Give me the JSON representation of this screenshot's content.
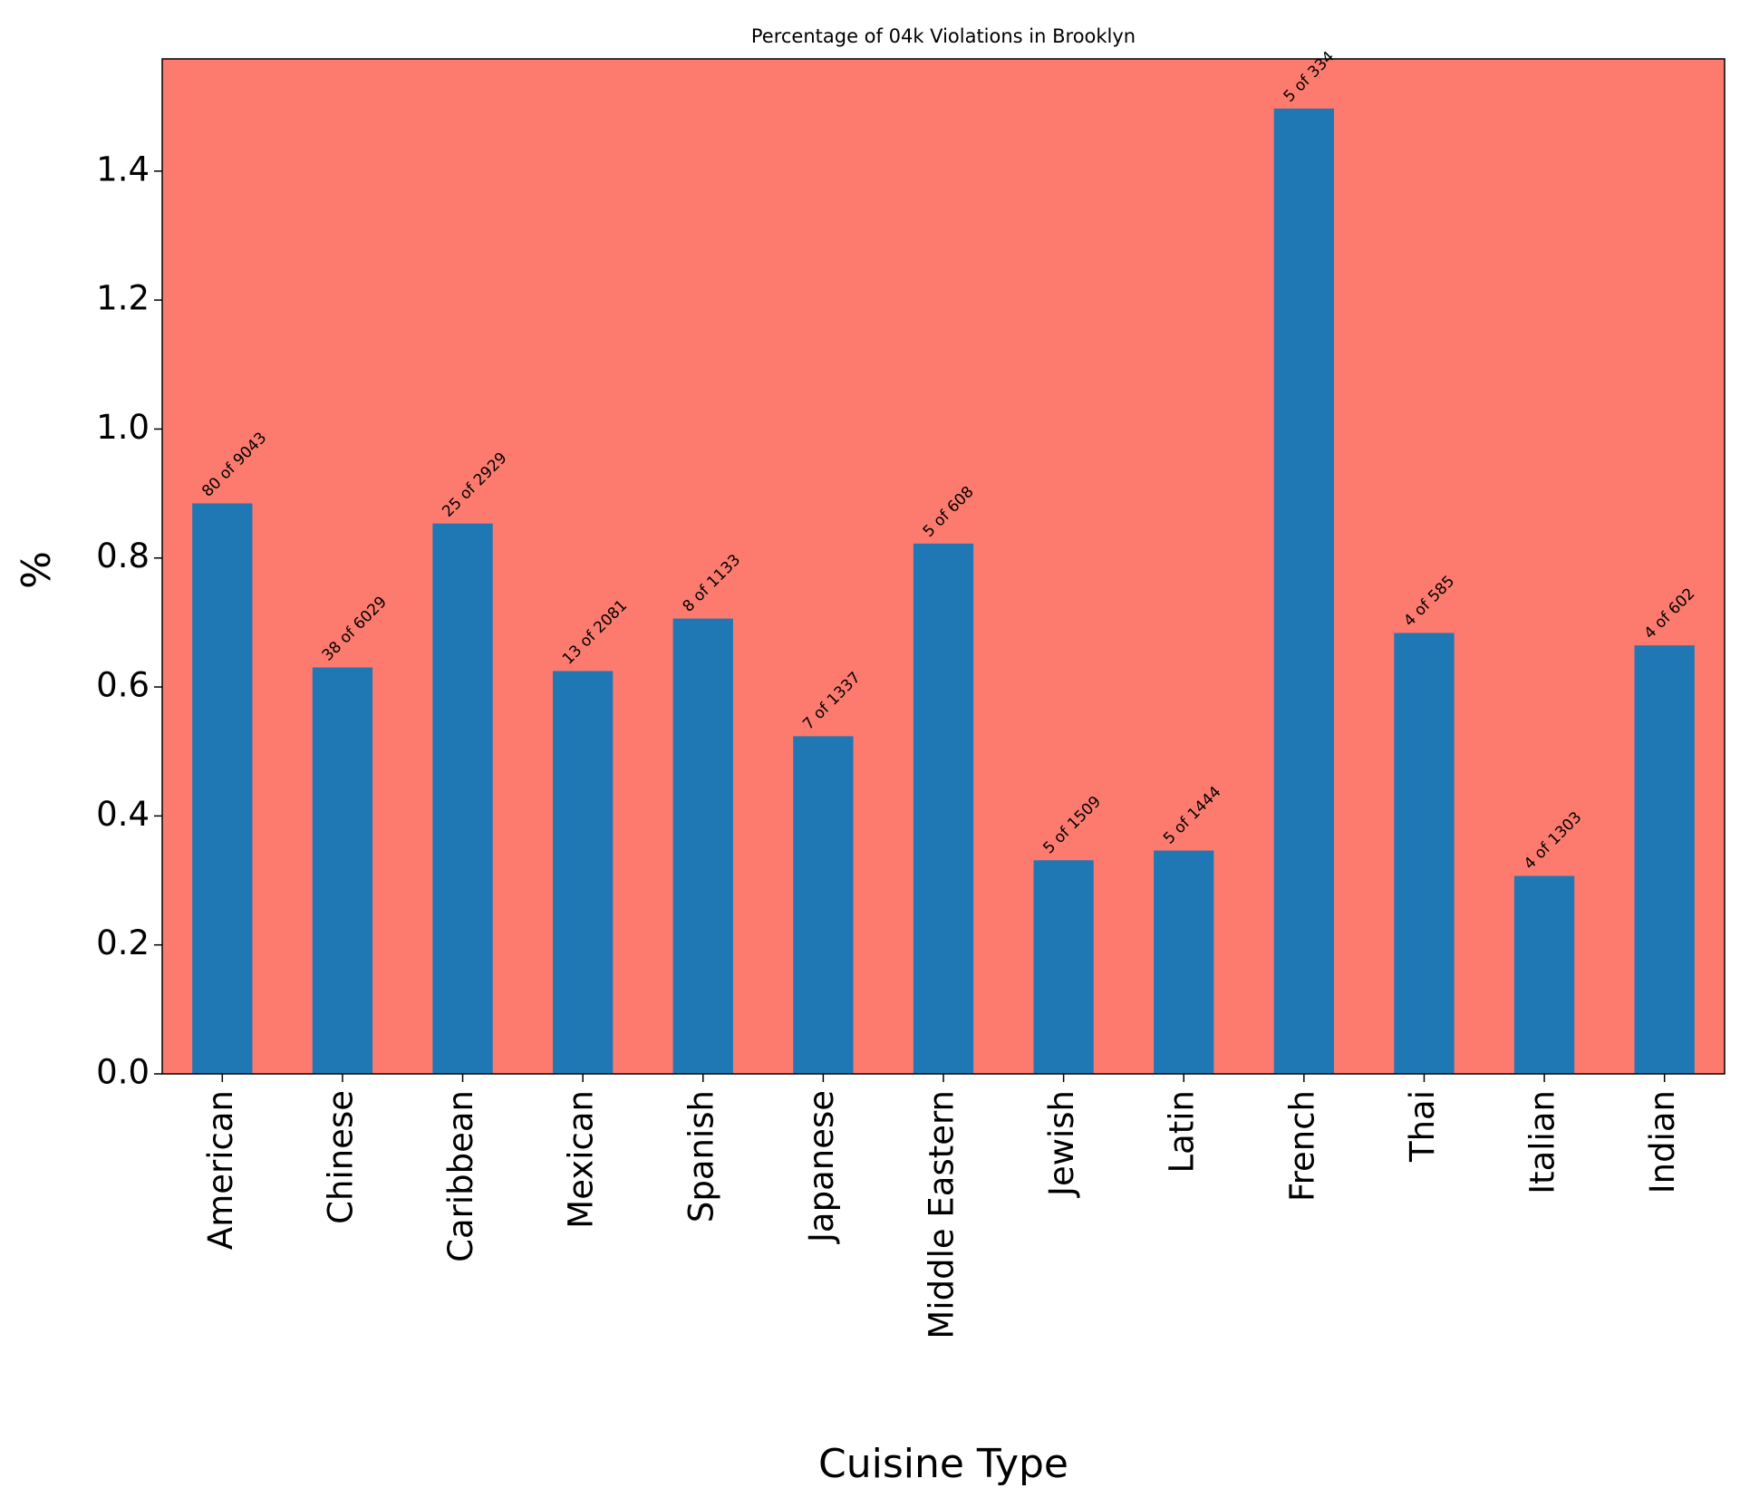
{
  "chart_data": {
    "type": "bar",
    "title": "Percentage of 04k Violations in Brooklyn",
    "x_label": "Cuisine Type",
    "y_label": "%",
    "categories": [
      "American",
      "Chinese",
      "Caribbean",
      "Mexican",
      "Spanish",
      "Japanese",
      "Middle Eastern",
      "Jewish",
      "Latin",
      "French",
      "Thai",
      "Italian",
      "Indian"
    ],
    "values": [
      0.8847,
      0.6303,
      0.8535,
      0.6247,
      0.7061,
      0.5236,
      0.8224,
      0.3313,
      0.3463,
      1.497,
      0.6838,
      0.307,
      0.6645
    ],
    "bar_annotations": [
      "80 of 9043",
      "38 of 6029",
      "25 of 2929",
      "13 of 2081",
      "8 of 1133",
      "7 of 1337",
      "5 of 608",
      "5 of 1509",
      "5 of 1444",
      "5 of 334",
      "4 of 585",
      "4 of 1303",
      "4 of 602"
    ],
    "color": "#1f77b4",
    "background_color": "#fd7b6e",
    "ylim": [
      0,
      1.574
    ],
    "yticks": [
      {
        "value": 0,
        "label": "0.0"
      },
      0.2,
      0.4,
      0.6,
      0.8,
      {
        "value": 1,
        "label": "1.0"
      },
      1.2,
      1.4
    ],
    "grid": false
  }
}
